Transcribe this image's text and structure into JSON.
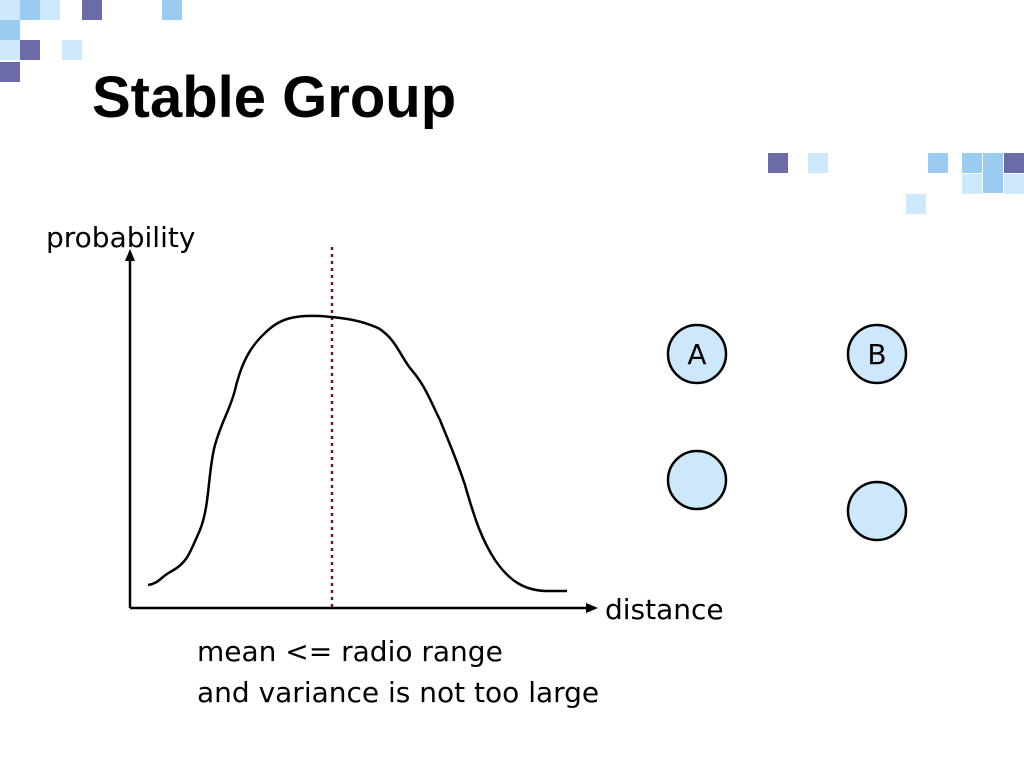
{
  "title": "Stable Group",
  "plot": {
    "y_axis_label": "probability",
    "x_axis_label": "distance",
    "caption": [
      "mean <= radio range",
      "and variance is not too large"
    ]
  },
  "nodes": [
    {
      "label": "A"
    },
    {
      "label": "B"
    }
  ]
}
